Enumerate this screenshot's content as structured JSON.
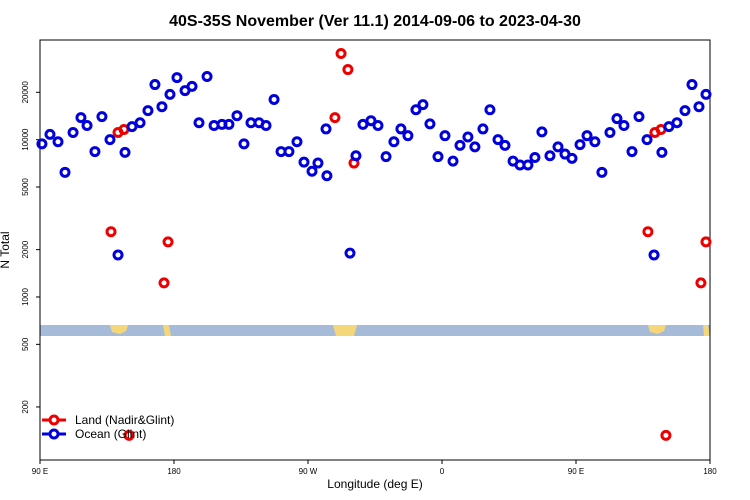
{
  "chart_data": {
    "type": "scatter",
    "title": "40S-35S November (Ver 11.1)   2014-09-06 to 2023-04-30",
    "xlabel": "Longitude (deg E)",
    "ylabel": "N Total",
    "xlim": [
      90,
      540
    ],
    "xticks": [
      {
        "value": 90,
        "label": "90 E"
      },
      180,
      {
        "value": 270,
        "label": "90 W"
      },
      {
        "value": 360,
        "label": "0"
      },
      {
        "value": 450,
        "label": "90 E"
      },
      {
        "value": 540,
        "label": "180"
      }
    ],
    "ylim": [
      92,
      43000
    ],
    "yscale": "log",
    "yticks": [
      200,
      500,
      1000,
      2000,
      5000,
      10000,
      20000
    ],
    "legend": "lower left",
    "series": [
      {
        "name": "Land (Nadir&Glint)",
        "color": "#ee0000",
        "x": [
          137.7,
          142.4,
          146.4,
          149.8,
          173.3,
          176.0,
          288.1,
          292.2,
          296.8,
          300.9,
          498.3,
          503.0,
          507.1,
          510.4,
          533.9,
          537.3
        ],
        "values": [
          2600,
          11100,
          11600,
          132,
          1230,
          2240,
          13800,
          35300,
          27900,
          7100,
          2600,
          11100,
          11600,
          132,
          1230,
          2240
        ]
      },
      {
        "name": "Ocean (Glint)",
        "color": "#0000dd",
        "x": [
          91.3,
          96.7,
          102.1,
          106.8,
          112.2,
          117.5,
          121.6,
          126.9,
          131.6,
          137.0,
          142.4,
          147.1,
          151.8,
          157.2,
          162.5,
          167.2,
          171.9,
          177.3,
          182.0,
          187.4,
          192.1,
          196.8,
          202.2,
          206.9,
          212.2,
          216.9,
          222.3,
          227.0,
          231.7,
          237.1,
          241.8,
          247.2,
          251.9,
          257.2,
          262.6,
          267.3,
          272.7,
          276.7,
          282.7,
          282.1,
          298.2,
          302.2,
          306.9,
          312.3,
          317.0,
          322.4,
          327.7,
          332.4,
          337.1,
          342.5,
          347.2,
          351.9,
          357.3,
          362.0,
          367.4,
          372.1,
          377.4,
          382.1,
          387.5,
          392.2,
          397.6,
          402.3,
          407.7,
          412.4,
          417.7,
          422.4,
          427.1,
          432.5,
          437.9,
          442.6,
          447.3,
          452.7,
          457.4,
          462.7,
          467.4,
          472.8,
          477.5,
          482.2,
          487.6,
          492.3,
          497.7,
          502.4,
          507.7,
          512.4,
          517.8,
          523.2,
          527.9,
          532.6,
          537.3
        ],
        "values": [
          9400,
          10800,
          9700,
          6200,
          11100,
          13800,
          12300,
          8400,
          14000,
          10000,
          1850,
          8300,
          12100,
          12800,
          15300,
          22400,
          16200,
          19400,
          24800,
          20500,
          21800,
          12800,
          25200,
          12300,
          12500,
          12500,
          14200,
          9400,
          12800,
          12800,
          12300,
          18000,
          8400,
          8400,
          9700,
          7200,
          6300,
          7100,
          5900,
          11700,
          1900,
          7900,
          12500,
          13200,
          12300,
          7800,
          9700,
          11700,
          10600,
          15500,
          16700,
          12600,
          7800,
          10600,
          7300,
          9200,
          10400,
          9000,
          11700,
          15500,
          10000,
          9200,
          7300,
          6900,
          6900,
          7700,
          11200,
          7900,
          9000,
          8100,
          7600,
          9300,
          10600,
          9700,
          6200,
          11100,
          13600,
          12300,
          8400,
          14000,
          10000,
          1850,
          8300,
          12100,
          12800,
          15300,
          22400,
          16200,
          19400
        ]
      }
    ]
  }
}
